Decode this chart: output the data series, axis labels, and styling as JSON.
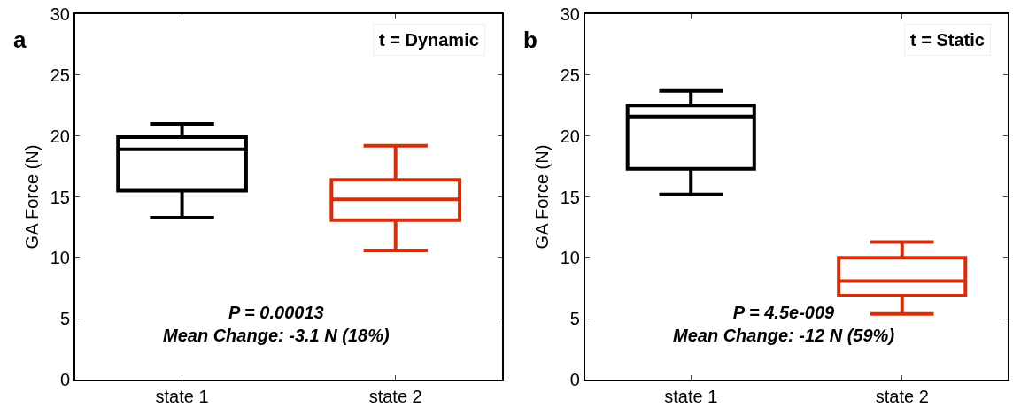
{
  "chart_data": [
    {
      "type": "box",
      "ylabel": "GA Force (N)",
      "categories": [
        "state 1",
        "state 2"
      ],
      "colors": [
        "#000000",
        "#d62d0a"
      ],
      "boxes": [
        {
          "low": 13.3,
          "q1": 15.5,
          "median": 18.9,
          "q3": 19.9,
          "high": 21.0
        },
        {
          "low": 10.6,
          "q1": 13.1,
          "median": 14.8,
          "q3": 16.4,
          "high": 19.2
        }
      ],
      "ylim": [
        0,
        30
      ],
      "yticks": [
        0,
        5,
        10,
        15,
        20,
        25,
        30
      ],
      "annotations": [
        "a",
        "t = Dynamic",
        "P = 0.00013\nMean Change: -3.1 N (18%)"
      ]
    },
    {
      "type": "box",
      "ylabel": "GA Force (N)",
      "categories": [
        "state 1",
        "state 2"
      ],
      "colors": [
        "#000000",
        "#d62d0a"
      ],
      "boxes": [
        {
          "low": 15.2,
          "q1": 17.3,
          "median": 21.6,
          "q3": 22.5,
          "high": 23.7
        },
        {
          "low": 5.4,
          "q1": 6.9,
          "median": 8.1,
          "q3": 10.0,
          "high": 11.3
        }
      ],
      "ylim": [
        0,
        30
      ],
      "yticks": [
        0,
        5,
        10,
        15,
        20,
        25,
        30
      ],
      "annotations": [
        "b",
        "t = Static",
        "P = 4.5e-009\nMean Change: -12 N (59%)"
      ]
    }
  ]
}
